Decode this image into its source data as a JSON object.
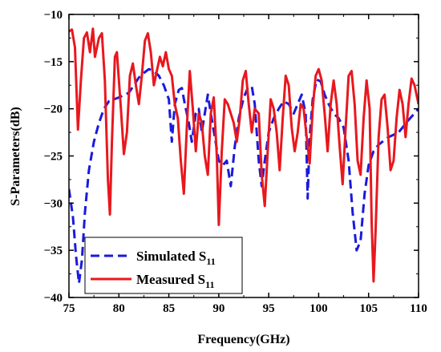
{
  "chart_data": {
    "type": "line",
    "xlabel": "Frequency(GHz)",
    "ylabel": "S-Parameters(dB)",
    "xlim": [
      75,
      110
    ],
    "ylim": [
      -40,
      -10
    ],
    "xticks": [
      75,
      80,
      85,
      90,
      95,
      100,
      105,
      110
    ],
    "yticks": [
      -10,
      -15,
      -20,
      -25,
      -30,
      -35,
      -40
    ],
    "grid": false,
    "legend_position": "bottom-left",
    "series": [
      {
        "name": "Simulated S11",
        "name_main": "Simulated S",
        "name_sub": "11",
        "color": "#1a1adc",
        "style": "dashed",
        "points": [
          [
            75.0,
            -28.5
          ],
          [
            75.4,
            -31.5
          ],
          [
            75.7,
            -35.5
          ],
          [
            76.0,
            -38.5
          ],
          [
            76.3,
            -36.0
          ],
          [
            76.6,
            -31.0
          ],
          [
            77.0,
            -26.5
          ],
          [
            77.5,
            -23.5
          ],
          [
            78.0,
            -21.5
          ],
          [
            78.5,
            -20.0
          ],
          [
            79.0,
            -19.2
          ],
          [
            80.0,
            -18.8
          ],
          [
            81.0,
            -18.3
          ],
          [
            81.5,
            -17.5
          ],
          [
            82.0,
            -16.7
          ],
          [
            82.5,
            -16.2
          ],
          [
            83.0,
            -15.8
          ],
          [
            83.5,
            -16.0
          ],
          [
            84.0,
            -16.5
          ],
          [
            84.5,
            -17.5
          ],
          [
            85.0,
            -19.0
          ],
          [
            85.3,
            -23.5
          ],
          [
            85.6,
            -19.5
          ],
          [
            86.0,
            -18.0
          ],
          [
            86.3,
            -17.8
          ],
          [
            86.6,
            -19.5
          ],
          [
            87.0,
            -21.5
          ],
          [
            87.3,
            -23.5
          ],
          [
            87.7,
            -20.5
          ],
          [
            88.0,
            -20.0
          ],
          [
            88.3,
            -22.5
          ],
          [
            88.6,
            -20.5
          ],
          [
            88.9,
            -18.5
          ],
          [
            89.2,
            -20.5
          ],
          [
            89.6,
            -23.0
          ],
          [
            90.0,
            -25.5
          ],
          [
            90.4,
            -26.0
          ],
          [
            90.8,
            -25.5
          ],
          [
            91.2,
            -28.2
          ],
          [
            91.6,
            -24.0
          ],
          [
            92.0,
            -21.0
          ],
          [
            92.5,
            -18.8
          ],
          [
            92.9,
            -17.8
          ],
          [
            93.3,
            -17.6
          ],
          [
            93.6,
            -19.5
          ],
          [
            94.0,
            -25.5
          ],
          [
            94.3,
            -28.2
          ],
          [
            94.6,
            -25.5
          ],
          [
            95.0,
            -22.5
          ],
          [
            95.5,
            -21.0
          ],
          [
            96.0,
            -20.0
          ],
          [
            96.5,
            -19.2
          ],
          [
            97.0,
            -19.5
          ],
          [
            97.5,
            -20.5
          ],
          [
            97.9,
            -19.5
          ],
          [
            98.3,
            -18.5
          ],
          [
            98.7,
            -20.5
          ],
          [
            98.9,
            -29.5
          ],
          [
            99.1,
            -23.0
          ],
          [
            99.4,
            -19.0
          ],
          [
            99.8,
            -16.9
          ],
          [
            100.2,
            -17.1
          ],
          [
            100.6,
            -18.5
          ],
          [
            101.0,
            -19.5
          ],
          [
            101.5,
            -20.5
          ],
          [
            102.0,
            -21.0
          ],
          [
            102.5,
            -22.0
          ],
          [
            103.0,
            -25.5
          ],
          [
            103.4,
            -31.0
          ],
          [
            103.8,
            -35.0
          ],
          [
            104.2,
            -34.0
          ],
          [
            104.6,
            -29.0
          ],
          [
            105.0,
            -26.0
          ],
          [
            105.5,
            -24.5
          ],
          [
            106.0,
            -23.8
          ],
          [
            107.0,
            -23.0
          ],
          [
            108.0,
            -22.5
          ],
          [
            109.0,
            -21.2
          ],
          [
            110.0,
            -20.0
          ]
        ]
      },
      {
        "name": "Measured S11",
        "name_main": "Measured S",
        "name_sub": "11",
        "color": "#e8181e",
        "style": "solid",
        "points": [
          [
            75.0,
            -11.8
          ],
          [
            75.3,
            -11.6
          ],
          [
            75.6,
            -13.5
          ],
          [
            75.9,
            -22.2
          ],
          [
            76.2,
            -17.0
          ],
          [
            76.5,
            -12.5
          ],
          [
            76.8,
            -11.9
          ],
          [
            77.1,
            -14.0
          ],
          [
            77.4,
            -11.5
          ],
          [
            77.6,
            -14.5
          ],
          [
            77.8,
            -13.5
          ],
          [
            78.0,
            -12.5
          ],
          [
            78.3,
            -12.0
          ],
          [
            78.6,
            -17.0
          ],
          [
            78.9,
            -27.5
          ],
          [
            79.1,
            -31.2
          ],
          [
            79.3,
            -23.5
          ],
          [
            79.6,
            -14.5
          ],
          [
            79.8,
            -14.0
          ],
          [
            80.2,
            -20.0
          ],
          [
            80.5,
            -24.8
          ],
          [
            80.8,
            -22.5
          ],
          [
            81.1,
            -16.5
          ],
          [
            81.4,
            -15.2
          ],
          [
            81.7,
            -17.5
          ],
          [
            82.0,
            -19.5
          ],
          [
            82.3,
            -16.5
          ],
          [
            82.6,
            -12.8
          ],
          [
            82.9,
            -12.0
          ],
          [
            83.2,
            -14.0
          ],
          [
            83.5,
            -17.5
          ],
          [
            83.8,
            -16.0
          ],
          [
            84.1,
            -14.5
          ],
          [
            84.4,
            -15.5
          ],
          [
            84.7,
            -14.0
          ],
          [
            85.0,
            -15.8
          ],
          [
            85.3,
            -16.5
          ],
          [
            85.6,
            -19.5
          ],
          [
            85.9,
            -21.0
          ],
          [
            86.2,
            -25.5
          ],
          [
            86.5,
            -29.0
          ],
          [
            86.8,
            -22.0
          ],
          [
            87.1,
            -16.0
          ],
          [
            87.4,
            -20.0
          ],
          [
            87.7,
            -24.5
          ],
          [
            88.0,
            -20.5
          ],
          [
            88.3,
            -21.5
          ],
          [
            88.6,
            -25.0
          ],
          [
            88.9,
            -27.0
          ],
          [
            89.2,
            -20.5
          ],
          [
            89.5,
            -18.8
          ],
          [
            89.8,
            -25.0
          ],
          [
            90.0,
            -32.3
          ],
          [
            90.3,
            -24.5
          ],
          [
            90.6,
            -19.0
          ],
          [
            90.9,
            -19.5
          ],
          [
            91.2,
            -20.5
          ],
          [
            91.5,
            -21.5
          ],
          [
            91.8,
            -23.5
          ],
          [
            92.1,
            -21.0
          ],
          [
            92.4,
            -17.0
          ],
          [
            92.7,
            -16.0
          ],
          [
            93.0,
            -19.5
          ],
          [
            93.3,
            -22.5
          ],
          [
            93.6,
            -20.0
          ],
          [
            94.0,
            -20.5
          ],
          [
            94.3,
            -27.0
          ],
          [
            94.6,
            -30.3
          ],
          [
            94.9,
            -24.5
          ],
          [
            95.2,
            -19.0
          ],
          [
            95.5,
            -20.0
          ],
          [
            95.8,
            -22.5
          ],
          [
            96.1,
            -26.5
          ],
          [
            96.4,
            -21.0
          ],
          [
            96.7,
            -16.5
          ],
          [
            97.0,
            -17.5
          ],
          [
            97.3,
            -22.0
          ],
          [
            97.6,
            -24.5
          ],
          [
            97.9,
            -22.5
          ],
          [
            98.2,
            -19.5
          ],
          [
            98.5,
            -20.0
          ],
          [
            98.8,
            -23.0
          ],
          [
            99.1,
            -25.8
          ],
          [
            99.4,
            -20.0
          ],
          [
            99.7,
            -16.5
          ],
          [
            100.0,
            -15.8
          ],
          [
            100.3,
            -17.0
          ],
          [
            100.6,
            -20.5
          ],
          [
            100.9,
            -24.5
          ],
          [
            101.2,
            -19.5
          ],
          [
            101.5,
            -17.0
          ],
          [
            101.8,
            -19.5
          ],
          [
            102.1,
            -24.0
          ],
          [
            102.4,
            -28.0
          ],
          [
            102.7,
            -22.0
          ],
          [
            103.0,
            -16.5
          ],
          [
            103.3,
            -16.0
          ],
          [
            103.6,
            -19.5
          ],
          [
            103.9,
            -25.5
          ],
          [
            104.2,
            -27.0
          ],
          [
            104.5,
            -21.0
          ],
          [
            104.8,
            -17.0
          ],
          [
            105.1,
            -20.0
          ],
          [
            105.3,
            -32.0
          ],
          [
            105.5,
            -38.3
          ],
          [
            105.7,
            -33.0
          ],
          [
            106.0,
            -23.0
          ],
          [
            106.3,
            -19.0
          ],
          [
            106.6,
            -18.5
          ],
          [
            106.9,
            -22.0
          ],
          [
            107.2,
            -26.5
          ],
          [
            107.5,
            -25.5
          ],
          [
            107.8,
            -21.0
          ],
          [
            108.1,
            -18.0
          ],
          [
            108.4,
            -19.5
          ],
          [
            108.7,
            -23.0
          ],
          [
            109.0,
            -19.5
          ],
          [
            109.3,
            -16.8
          ],
          [
            109.6,
            -17.5
          ],
          [
            110.0,
            -19.5
          ]
        ]
      }
    ]
  }
}
